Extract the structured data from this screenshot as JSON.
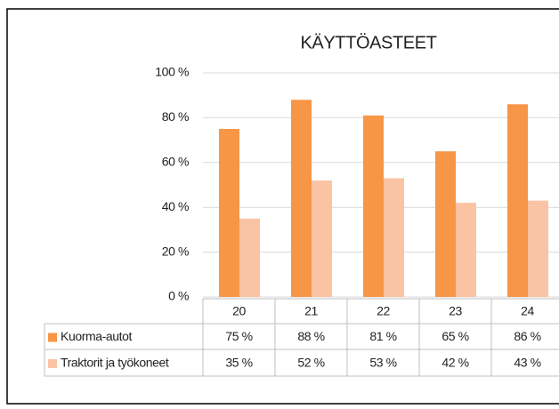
{
  "chart_data": {
    "type": "bar",
    "title": "KÄYTTÖASTEET",
    "categories": [
      "20",
      "21",
      "22",
      "23",
      "24"
    ],
    "series": [
      {
        "name": "Kuorma-autot",
        "color": "#f79646",
        "values": [
          75,
          88,
          81,
          65,
          86
        ],
        "value_labels": [
          "75 %",
          "88 %",
          "81 %",
          "65 %",
          "86 %"
        ]
      },
      {
        "name": "Traktorit ja työkoneet",
        "color": "#f9c3a4",
        "values": [
          35,
          52,
          53,
          42,
          43
        ],
        "value_labels": [
          "35 %",
          "52 %",
          "53 %",
          "42 %",
          "43 %"
        ]
      }
    ],
    "ylim": [
      0,
      100
    ],
    "yticks": [
      {
        "value": 0,
        "label": "0 %"
      },
      {
        "value": 20,
        "label": "20 %"
      },
      {
        "value": 40,
        "label": "40 %"
      },
      {
        "value": 60,
        "label": "60 %"
      },
      {
        "value": 80,
        "label": "80 %"
      },
      {
        "value": 100,
        "label": "100 %"
      }
    ],
    "grid": true,
    "data_table": true
  }
}
